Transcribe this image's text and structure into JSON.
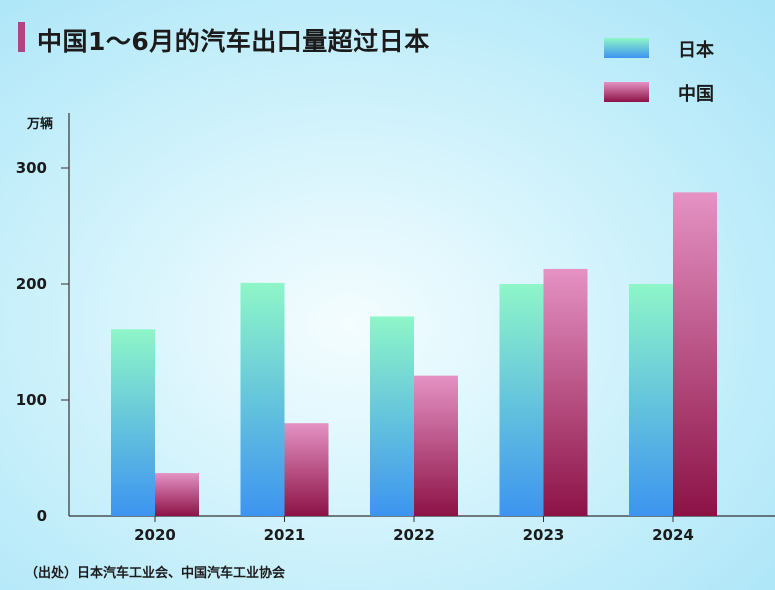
{
  "title": "中国1～6月的汽车出口量超过日本",
  "unit": "万辆",
  "source": "（出处）日本汽车工业会、中国汽车工业协会",
  "colors": {
    "japan_top": "#8ef6c8",
    "japan_bottom": "#3d94f0",
    "china_top": "#e592c4",
    "china_bottom": "#8c1246",
    "accent": "#b2457f"
  },
  "chart_data": {
    "type": "bar",
    "title": "中国1～6月的汽车出口量超过日本",
    "ylabel": "万辆",
    "xlabel": "",
    "ylim": [
      0,
      345
    ],
    "yticks": [
      0,
      100,
      200,
      300
    ],
    "categories": [
      "2020",
      "2021",
      "2022",
      "2023",
      "2024"
    ],
    "series": [
      {
        "name": "日本",
        "values": [
          161,
          201,
          172,
          200,
          200
        ]
      },
      {
        "name": "中国",
        "values": [
          37,
          80,
          121,
          213,
          279
        ]
      }
    ],
    "legend": "top-right",
    "grid": false
  }
}
